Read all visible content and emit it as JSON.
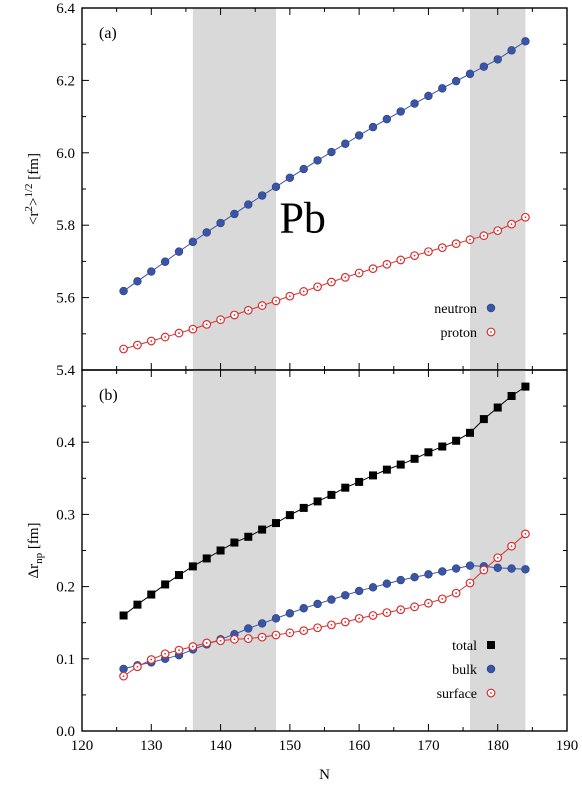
{
  "chart_data": [
    {
      "type": "scatter",
      "panel_label": "(a)",
      "annotation": "Pb",
      "ylabel": "<r2>1/2 [fm]",
      "ylabel_parts": {
        "base": "<r",
        "sup1": "2",
        "mid": ">",
        "sup2": "1/2",
        "unit": " [fm]"
      },
      "xlabel": "",
      "xlim": [
        120,
        190
      ],
      "ylim": [
        5.4,
        6.4
      ],
      "yticks": [
        "5.4",
        "5.6",
        "5.8",
        "6.0",
        "6.2",
        "6.4"
      ],
      "shaded_x_ranges": [
        [
          136,
          148
        ],
        [
          176,
          184
        ]
      ],
      "legend_position": "bottom-right",
      "x": [
        126,
        128,
        130,
        132,
        134,
        136,
        138,
        140,
        142,
        144,
        146,
        148,
        150,
        152,
        154,
        156,
        158,
        160,
        162,
        164,
        166,
        168,
        170,
        172,
        174,
        176,
        178,
        180,
        182,
        184
      ],
      "series": [
        {
          "name": "neutron",
          "marker": "filled-circle",
          "color": "#3a55a6",
          "values": [
            5.618,
            5.645,
            5.672,
            5.699,
            5.727,
            5.754,
            5.78,
            5.806,
            5.831,
            5.857,
            5.882,
            5.906,
            5.931,
            5.955,
            5.979,
            6.002,
            6.025,
            6.048,
            6.071,
            6.093,
            6.114,
            6.136,
            6.157,
            6.178,
            6.198,
            6.218,
            6.238,
            6.258,
            6.283,
            6.308
          ]
        },
        {
          "name": "proton",
          "marker": "open-circle",
          "color": "#d93030",
          "values": [
            5.458,
            5.469,
            5.48,
            5.491,
            5.502,
            5.513,
            5.526,
            5.539,
            5.552,
            5.565,
            5.578,
            5.591,
            5.604,
            5.617,
            5.63,
            5.643,
            5.656,
            5.668,
            5.68,
            5.692,
            5.704,
            5.716,
            5.727,
            5.738,
            5.749,
            5.76,
            5.771,
            5.785,
            5.803,
            5.822
          ]
        }
      ]
    },
    {
      "type": "scatter",
      "panel_label": "(b)",
      "ylabel": "Δrnp [fm]",
      "ylabel_parts": {
        "base": "Δr",
        "sub": "np",
        "unit": " [fm]"
      },
      "xlabel": "N",
      "xlim": [
        120,
        190
      ],
      "ylim": [
        0.0,
        0.5
      ],
      "xticks": [
        "120",
        "130",
        "140",
        "150",
        "160",
        "170",
        "180",
        "190"
      ],
      "yticks": [
        "0.0",
        "0.1",
        "0.2",
        "0.3",
        "0.4"
      ],
      "shaded_x_ranges": [
        [
          136,
          148
        ],
        [
          176,
          184
        ]
      ],
      "legend_position": "bottom-right",
      "x": [
        126,
        128,
        130,
        132,
        134,
        136,
        138,
        140,
        142,
        144,
        146,
        148,
        150,
        152,
        154,
        156,
        158,
        160,
        162,
        164,
        166,
        168,
        170,
        172,
        174,
        176,
        178,
        180,
        182,
        184
      ],
      "series": [
        {
          "name": "total",
          "marker": "filled-square",
          "color": "#000000",
          "values": [
            0.16,
            0.175,
            0.189,
            0.203,
            0.216,
            0.228,
            0.239,
            0.25,
            0.261,
            0.269,
            0.279,
            0.288,
            0.299,
            0.309,
            0.318,
            0.327,
            0.337,
            0.345,
            0.354,
            0.362,
            0.369,
            0.377,
            0.386,
            0.394,
            0.402,
            0.413,
            0.432,
            0.448,
            0.464,
            0.477
          ]
        },
        {
          "name": "bulk",
          "marker": "filled-circle",
          "color": "#3a55a6",
          "values": [
            0.086,
            0.091,
            0.095,
            0.1,
            0.105,
            0.113,
            0.12,
            0.127,
            0.134,
            0.142,
            0.149,
            0.156,
            0.163,
            0.17,
            0.176,
            0.182,
            0.188,
            0.194,
            0.199,
            0.204,
            0.209,
            0.213,
            0.217,
            0.221,
            0.225,
            0.229,
            0.228,
            0.226,
            0.225,
            0.224
          ]
        },
        {
          "name": "surface",
          "marker": "open-circle",
          "color": "#d93030",
          "values": [
            0.076,
            0.089,
            0.099,
            0.107,
            0.112,
            0.117,
            0.122,
            0.125,
            0.127,
            0.128,
            0.13,
            0.133,
            0.136,
            0.139,
            0.143,
            0.147,
            0.151,
            0.156,
            0.16,
            0.164,
            0.168,
            0.172,
            0.177,
            0.183,
            0.191,
            0.205,
            0.223,
            0.24,
            0.256,
            0.273
          ]
        }
      ]
    }
  ]
}
